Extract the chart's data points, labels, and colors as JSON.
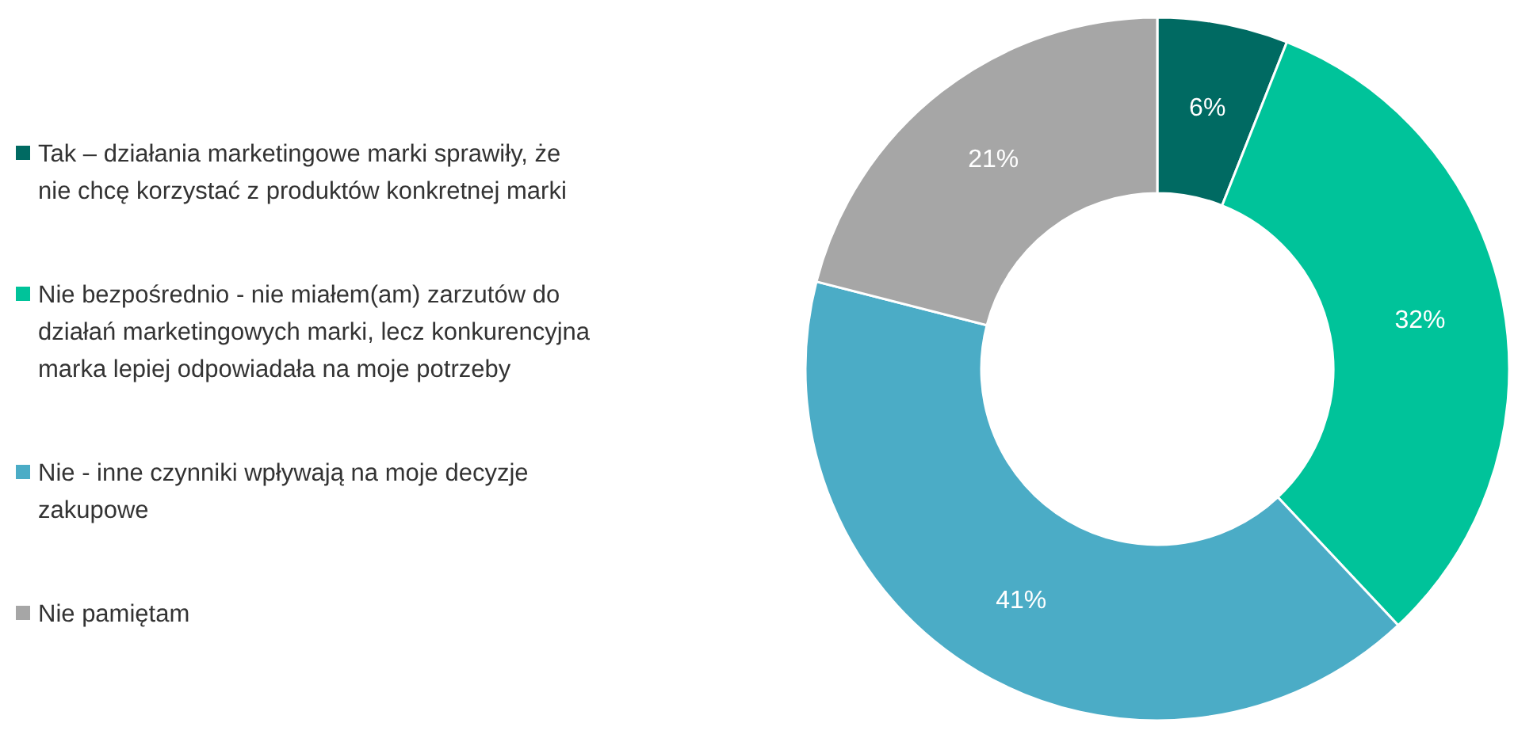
{
  "chart_data": {
    "type": "donut",
    "categories": [
      "Tak – działania marketingowe marki sprawiły, że nie chcę korzystać z produktów konkretnej marki",
      "Nie bezpośrednio - nie miałem(am) zarzutów do działań marketingowych marki, lecz konkurencyjna marka lepiej odpowiadała na moje potrzeby",
      "Nie - inne czynniki wpływają na moje decyzje zakupowe",
      "Nie pamiętam"
    ],
    "values": [
      6,
      32,
      41,
      21
    ],
    "colors": [
      "#006a62",
      "#00c39a",
      "#4bacc6",
      "#a6a6a6"
    ],
    "value_labels": [
      "6%",
      "32%",
      "41%",
      "21%"
    ],
    "legend": "left"
  }
}
